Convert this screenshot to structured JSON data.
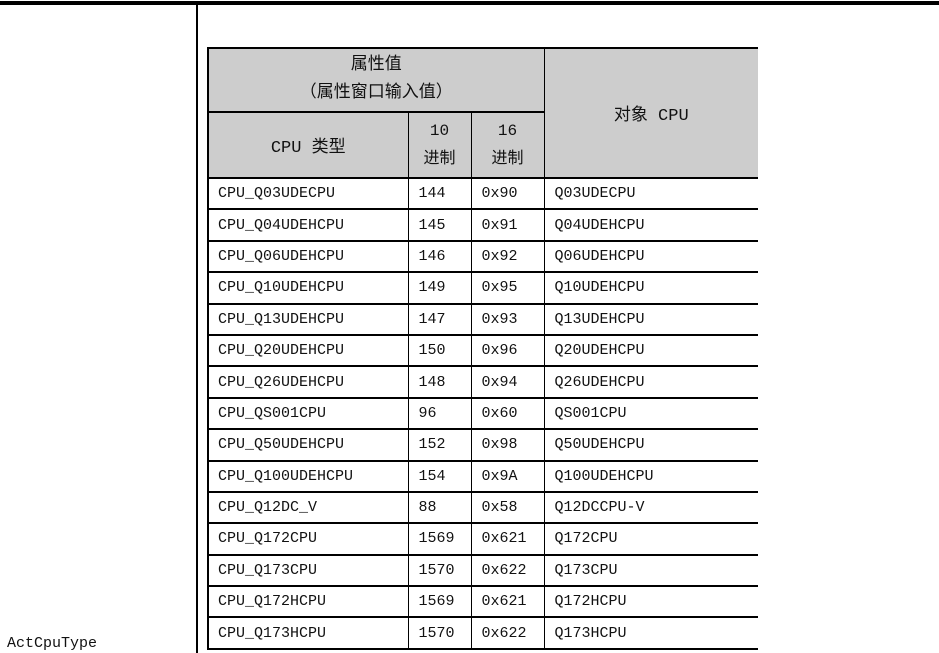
{
  "page": {
    "property_label": "ActCpuType"
  },
  "colors": {
    "header_bg": "#cdcdcd",
    "border": "#000000",
    "text": "#111111",
    "page_bg": "#ffffff"
  },
  "table": {
    "header": {
      "attr_value_line1": "属性值",
      "attr_value_line2": "（属性窗口输入值）",
      "target_cpu": "对象 CPU",
      "cpu_type": "CPU 类型",
      "dec_top": "10",
      "dec_bottom": "进制",
      "hex_top": "16",
      "hex_bottom": "进制"
    },
    "rows": [
      {
        "cpu_type": "CPU_Q03UDECPU",
        "dec": "144",
        "hex": "0x90",
        "target": "Q03UDECPU"
      },
      {
        "cpu_type": "CPU_Q04UDEHCPU",
        "dec": "145",
        "hex": "0x91",
        "target": "Q04UDEHCPU"
      },
      {
        "cpu_type": "CPU_Q06UDEHCPU",
        "dec": "146",
        "hex": "0x92",
        "target": "Q06UDEHCPU"
      },
      {
        "cpu_type": "CPU_Q10UDEHCPU",
        "dec": "149",
        "hex": "0x95",
        "target": "Q10UDEHCPU"
      },
      {
        "cpu_type": "CPU_Q13UDEHCPU",
        "dec": "147",
        "hex": "0x93",
        "target": "Q13UDEHCPU"
      },
      {
        "cpu_type": "CPU_Q20UDEHCPU",
        "dec": "150",
        "hex": "0x96",
        "target": "Q20UDEHCPU"
      },
      {
        "cpu_type": "CPU_Q26UDEHCPU",
        "dec": "148",
        "hex": "0x94",
        "target": "Q26UDEHCPU"
      },
      {
        "cpu_type": "CPU_QS001CPU",
        "dec": "96",
        "hex": "0x60",
        "target": "QS001CPU"
      },
      {
        "cpu_type": "CPU_Q50UDEHCPU",
        "dec": "152",
        "hex": "0x98",
        "target": "Q50UDEHCPU"
      },
      {
        "cpu_type": "CPU_Q100UDEHCPU",
        "dec": "154",
        "hex": "0x9A",
        "target": "Q100UDEHCPU"
      },
      {
        "cpu_type": "CPU_Q12DC_V",
        "dec": "88",
        "hex": "0x58",
        "target": "Q12DCCPU-V"
      },
      {
        "cpu_type": "CPU_Q172CPU",
        "dec": "1569",
        "hex": "0x621",
        "target": "Q172CPU"
      },
      {
        "cpu_type": "CPU_Q173CPU",
        "dec": "1570",
        "hex": "0x622",
        "target": "Q173CPU"
      },
      {
        "cpu_type": "CPU_Q172HCPU",
        "dec": "1569",
        "hex": "0x621",
        "target": "Q172HCPU"
      },
      {
        "cpu_type": "CPU_Q173HCPU",
        "dec": "1570",
        "hex": "0x622",
        "target": "Q173HCPU"
      }
    ]
  }
}
